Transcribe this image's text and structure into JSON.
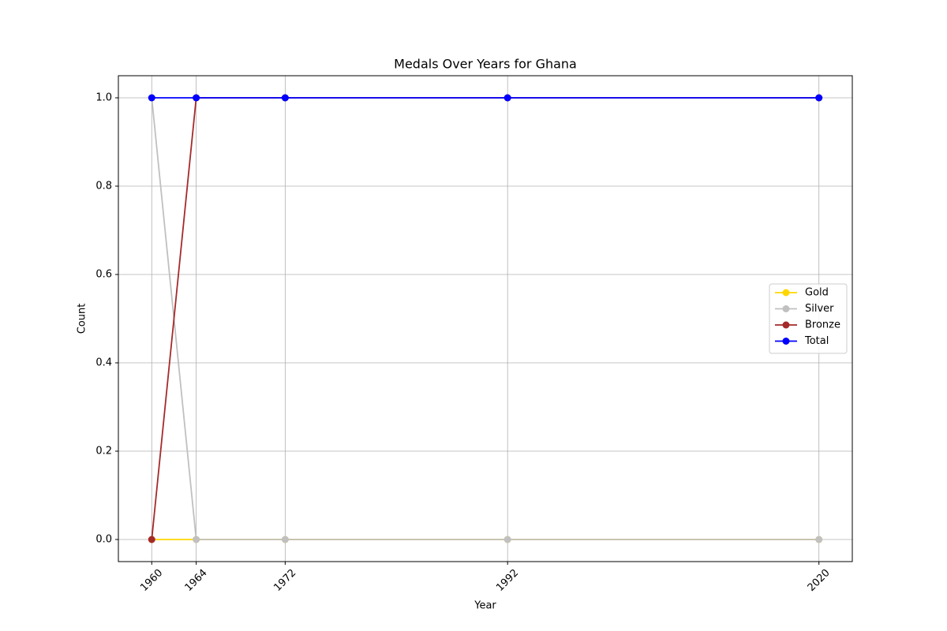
{
  "chart_data": {
    "type": "line",
    "title": "Medals Over Years for Ghana",
    "xlabel": "Year",
    "ylabel": "Count",
    "x": [
      1960,
      1964,
      1972,
      1992,
      2020
    ],
    "series": [
      {
        "name": "Gold",
        "color": "#ffd700",
        "values": [
          0,
          0,
          0,
          0,
          0
        ]
      },
      {
        "name": "Silver",
        "color": "#c0c0c0",
        "values": [
          1,
          0,
          0,
          0,
          0
        ]
      },
      {
        "name": "Bronze",
        "color": "#a52a2a",
        "values": [
          0,
          1,
          1,
          1,
          1
        ]
      },
      {
        "name": "Total",
        "color": "#0000ff",
        "values": [
          1,
          1,
          1,
          1,
          1
        ]
      }
    ],
    "xlim": [
      1957,
      2023
    ],
    "xticks": [
      1960,
      1964,
      1972,
      1992,
      2020
    ],
    "ylim": [
      -0.05,
      1.05
    ],
    "yticks": [
      {
        "value": 0,
        "label": "0.0"
      },
      0.2,
      0.4,
      0.6,
      0.8,
      {
        "value": 1,
        "label": "1.0"
      }
    ],
    "grid": true,
    "legend": "right"
  }
}
